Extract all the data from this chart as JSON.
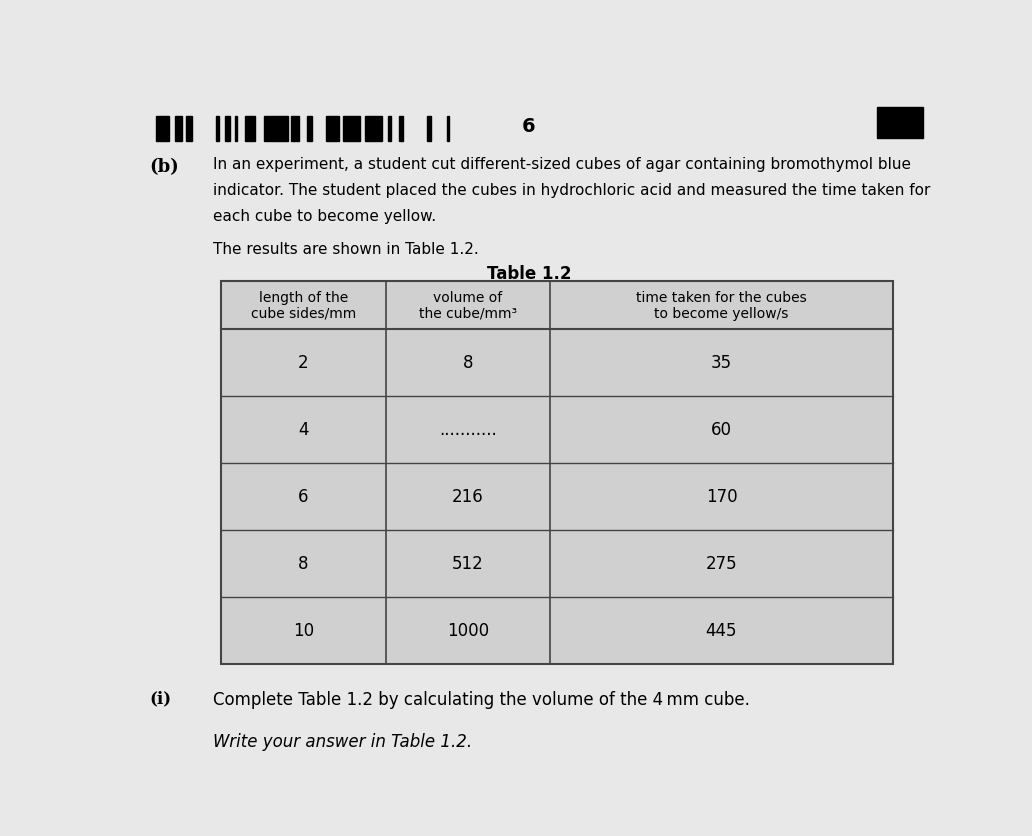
{
  "page_number": "6",
  "background_color": "#e8e8e8",
  "paper_color": "#e8e8e8",
  "section_label": "(b)",
  "main_text_line1": "In an experiment, a student cut different-sized cubes of agar containing bromothymol blue",
  "main_text_line2": "indicator. The student placed the cubes in hydrochloric acid and measured the time taken for",
  "main_text_line3": "each cube to become yellow.",
  "results_text": "The results are shown in Table 1.2.",
  "table_title": "Table 1.2",
  "col_headers": [
    "length of the\ncube sides/mm",
    "volume of\nthe cube/mm³",
    "time taken for the cubes\nto become yellow/s"
  ],
  "rows": [
    [
      "2",
      "8",
      "35"
    ],
    [
      "4",
      "...........",
      "60"
    ],
    [
      "6",
      "216",
      "170"
    ],
    [
      "8",
      "512",
      "275"
    ],
    [
      "10",
      "1000",
      "445"
    ]
  ],
  "sub_question_label": "(i)",
  "sub_question_text": "Complete Table 1.2 by calculating the volume of the 4 mm cube.",
  "write_text": "Write your answer in Table 1.2.",
  "cell_color": "#d0d0d0",
  "header_color": "#d0d0d0",
  "table_border_color": "#444444",
  "text_color": "#000000"
}
